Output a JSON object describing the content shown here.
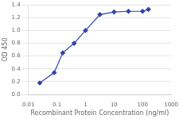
{
  "chart_data": {
    "type": "line",
    "x": [
      0.025,
      0.08,
      0.16,
      0.4,
      1.0,
      3.2,
      10.0,
      32.0,
      100.0,
      160.0
    ],
    "values": [
      0.18,
      0.34,
      0.65,
      0.8,
      1.0,
      1.25,
      1.29,
      1.3,
      1.3,
      1.33
    ],
    "color": "#3344aa",
    "marker": "diamond",
    "xlabel": "Recombinant Protein Concentration (ng/ml)",
    "ylabel": "OD 450",
    "log": "x",
    "xlim": [
      0.01,
      1000
    ],
    "xticks": [
      0.01,
      0.1,
      1,
      10,
      100,
      1000
    ],
    "ylim": [
      0,
      1.4
    ],
    "yticks": [
      {
        "value": 0,
        "label": "0.0"
      },
      0.2,
      0.4,
      0.6,
      0.8,
      {
        "value": 1,
        "label": "1.0"
      },
      1.2,
      1.4
    ],
    "grid": "y"
  }
}
